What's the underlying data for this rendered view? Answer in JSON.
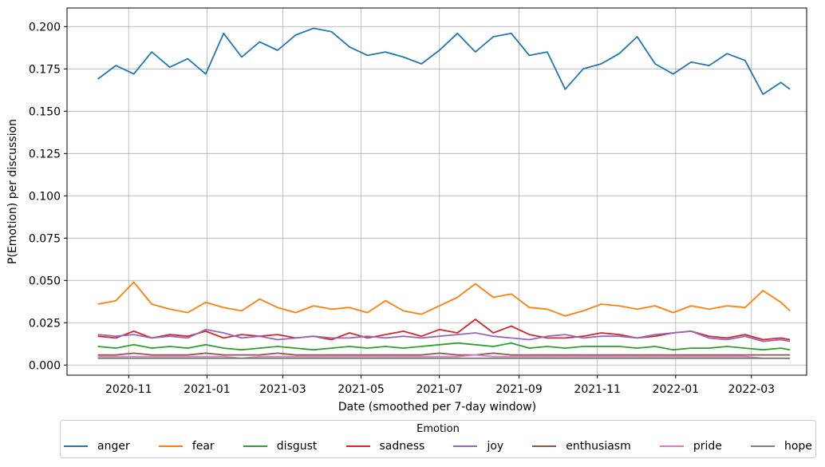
{
  "chart_data": {
    "type": "line",
    "title": "",
    "xlabel": "Date (smoothed per 7-day window)",
    "ylabel": "P(Emotion) per discussion",
    "ylim": [
      -0.006,
      0.211
    ],
    "xlim": [
      "2020-09-14",
      "2022-04-13"
    ],
    "grid": true,
    "legend_placement": "bottom",
    "legend_title": "Emotion",
    "x_ticks": [
      "2020-11",
      "2021-01",
      "2021-03",
      "2021-05",
      "2021-07",
      "2021-09",
      "2021-11",
      "2022-01",
      "2022-03"
    ],
    "y_ticks": [
      "0.000",
      "0.025",
      "0.050",
      "0.075",
      "0.100",
      "0.125",
      "0.150",
      "0.175",
      "0.200"
    ],
    "x": [
      "2020-10-08",
      "2020-10-22",
      "2020-11-05",
      "2020-11-19",
      "2020-12-03",
      "2020-12-17",
      "2020-12-31",
      "2021-01-14",
      "2021-01-28",
      "2021-02-11",
      "2021-02-25",
      "2021-03-11",
      "2021-03-25",
      "2021-04-08",
      "2021-04-22",
      "2021-05-06",
      "2021-05-20",
      "2021-06-03",
      "2021-06-17",
      "2021-07-01",
      "2021-07-15",
      "2021-07-29",
      "2021-08-12",
      "2021-08-26",
      "2021-09-09",
      "2021-09-23",
      "2021-10-07",
      "2021-10-21",
      "2021-11-04",
      "2021-11-18",
      "2021-12-02",
      "2021-12-16",
      "2021-12-30",
      "2022-01-13",
      "2022-01-27",
      "2022-02-10",
      "2022-02-24",
      "2022-03-10",
      "2022-03-24",
      "2022-03-31"
    ],
    "series": [
      {
        "name": "anger",
        "color": "#1f77b4",
        "values": [
          0.169,
          0.177,
          0.172,
          0.185,
          0.176,
          0.181,
          0.172,
          0.196,
          0.182,
          0.191,
          0.186,
          0.195,
          0.199,
          0.197,
          0.188,
          0.183,
          0.185,
          0.182,
          0.178,
          0.186,
          0.196,
          0.185,
          0.194,
          0.196,
          0.183,
          0.185,
          0.163,
          0.175,
          0.178,
          0.184,
          0.194,
          0.178,
          0.172,
          0.179,
          0.177,
          0.184,
          0.18,
          0.16,
          0.167,
          0.163
        ]
      },
      {
        "name": "fear",
        "color": "#ff7f0e",
        "values": [
          0.036,
          0.038,
          0.049,
          0.036,
          0.033,
          0.031,
          0.037,
          0.034,
          0.032,
          0.039,
          0.034,
          0.031,
          0.035,
          0.033,
          0.034,
          0.031,
          0.038,
          0.032,
          0.03,
          0.035,
          0.04,
          0.048,
          0.04,
          0.042,
          0.034,
          0.033,
          0.029,
          0.032,
          0.036,
          0.035,
          0.033,
          0.035,
          0.031,
          0.035,
          0.033,
          0.035,
          0.034,
          0.044,
          0.037,
          0.032
        ]
      },
      {
        "name": "disgust",
        "color": "#2ca02c",
        "values": [
          0.011,
          0.01,
          0.012,
          0.01,
          0.011,
          0.01,
          0.012,
          0.01,
          0.009,
          0.01,
          0.011,
          0.01,
          0.009,
          0.01,
          0.011,
          0.01,
          0.011,
          0.01,
          0.011,
          0.012,
          0.013,
          0.012,
          0.011,
          0.013,
          0.01,
          0.011,
          0.01,
          0.011,
          0.011,
          0.011,
          0.01,
          0.011,
          0.009,
          0.01,
          0.01,
          0.011,
          0.01,
          0.009,
          0.01,
          0.009
        ]
      },
      {
        "name": "sadness",
        "color": "#d62728",
        "values": [
          0.017,
          0.016,
          0.02,
          0.016,
          0.018,
          0.017,
          0.02,
          0.016,
          0.018,
          0.017,
          0.018,
          0.016,
          0.017,
          0.015,
          0.019,
          0.016,
          0.018,
          0.02,
          0.017,
          0.021,
          0.019,
          0.027,
          0.019,
          0.023,
          0.018,
          0.016,
          0.016,
          0.017,
          0.019,
          0.018,
          0.016,
          0.017,
          0.019,
          0.02,
          0.017,
          0.016,
          0.018,
          0.015,
          0.016,
          0.015
        ]
      },
      {
        "name": "joy",
        "color": "#9467bd",
        "values": [
          0.018,
          0.017,
          0.018,
          0.016,
          0.017,
          0.016,
          0.021,
          0.019,
          0.016,
          0.017,
          0.015,
          0.016,
          0.017,
          0.016,
          0.016,
          0.017,
          0.016,
          0.017,
          0.016,
          0.017,
          0.018,
          0.019,
          0.017,
          0.016,
          0.015,
          0.017,
          0.018,
          0.016,
          0.017,
          0.017,
          0.016,
          0.018,
          0.019,
          0.02,
          0.016,
          0.015,
          0.017,
          0.014,
          0.015,
          0.014
        ]
      },
      {
        "name": "enthusiasm",
        "color": "#8c564b",
        "values": [
          0.006,
          0.006,
          0.007,
          0.006,
          0.006,
          0.006,
          0.007,
          0.006,
          0.006,
          0.006,
          0.007,
          0.006,
          0.006,
          0.006,
          0.006,
          0.006,
          0.006,
          0.006,
          0.006,
          0.007,
          0.006,
          0.006,
          0.007,
          0.006,
          0.006,
          0.006,
          0.006,
          0.006,
          0.006,
          0.006,
          0.006,
          0.006,
          0.006,
          0.006,
          0.006,
          0.006,
          0.006,
          0.006,
          0.006,
          0.006
        ]
      },
      {
        "name": "pride",
        "color": "#e377c2",
        "values": [
          0.005,
          0.005,
          0.005,
          0.005,
          0.005,
          0.005,
          0.005,
          0.005,
          0.004,
          0.005,
          0.005,
          0.005,
          0.005,
          0.005,
          0.005,
          0.005,
          0.005,
          0.005,
          0.005,
          0.005,
          0.005,
          0.006,
          0.005,
          0.005,
          0.005,
          0.005,
          0.005,
          0.005,
          0.005,
          0.005,
          0.005,
          0.005,
          0.005,
          0.005,
          0.005,
          0.005,
          0.005,
          0.004,
          0.004,
          0.004
        ]
      },
      {
        "name": "hope",
        "color": "#7f7f7f",
        "values": [
          0.004,
          0.004,
          0.004,
          0.004,
          0.004,
          0.004,
          0.004,
          0.004,
          0.004,
          0.004,
          0.004,
          0.004,
          0.004,
          0.004,
          0.004,
          0.004,
          0.004,
          0.004,
          0.004,
          0.004,
          0.004,
          0.004,
          0.004,
          0.004,
          0.004,
          0.004,
          0.004,
          0.004,
          0.004,
          0.004,
          0.004,
          0.004,
          0.004,
          0.004,
          0.004,
          0.004,
          0.004,
          0.004,
          0.004,
          0.004
        ]
      }
    ]
  }
}
